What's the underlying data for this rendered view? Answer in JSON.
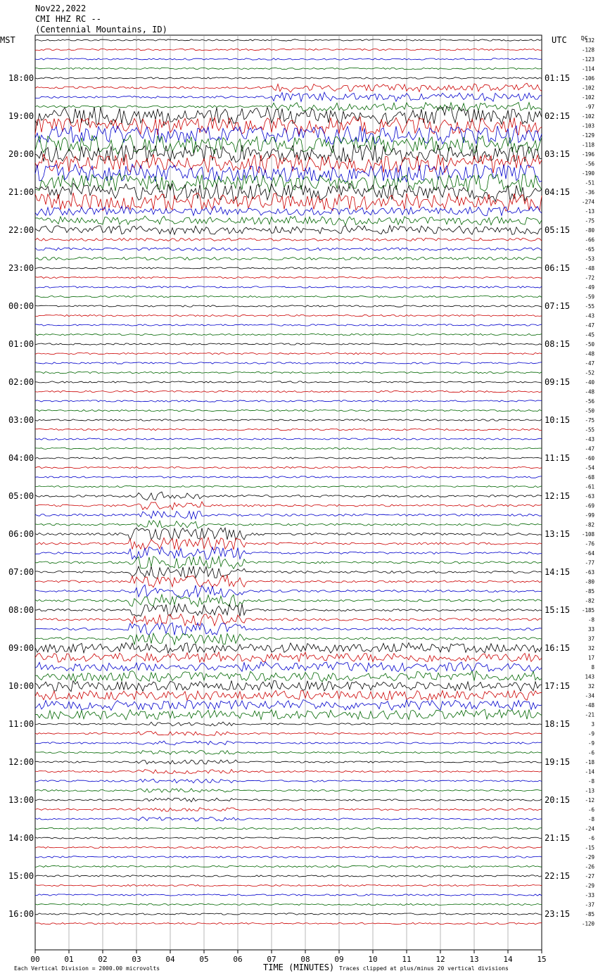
{
  "header": {
    "date": "Nov22,2022",
    "station": "CMI HHZ RC --",
    "location": "(Centennial Mountains, ID)"
  },
  "left_axis_label": "MST",
  "right_axis_label": "UTC",
  "dc_label": "DC",
  "xlabel": "TIME (MINUTES)",
  "footer_left": "Each Vertical Division = 2000.00 microvolts",
  "footer_right": "Traces clipped at plus/minus 20 vertical divisions",
  "chart_data": {
    "type": "line",
    "title": "CMI HHZ RC -- (Centennial Mountains, ID)",
    "xlabel": "TIME (MINUTES)",
    "xlim": [
      0,
      15
    ],
    "x_ticks": [
      "00",
      "01",
      "02",
      "03",
      "04",
      "05",
      "06",
      "07",
      "08",
      "09",
      "10",
      "11",
      "12",
      "13",
      "14",
      "15"
    ],
    "trace_colors": [
      "#000000",
      "#cc0000",
      "#0000cc",
      "#006600"
    ],
    "left_time_labels": [
      "18:00",
      "19:00",
      "20:00",
      "21:00",
      "22:00",
      "23:00",
      "00:00",
      "01:00",
      "02:00",
      "03:00",
      "04:00",
      "05:00",
      "06:00",
      "07:00",
      "08:00",
      "09:00",
      "10:00",
      "11:00",
      "12:00",
      "13:00",
      "14:00",
      "15:00",
      "16:00"
    ],
    "right_time_labels": [
      "01:15",
      "02:15",
      "03:15",
      "04:15",
      "05:15",
      "06:15",
      "07:15",
      "08:15",
      "09:15",
      "10:15",
      "11:15",
      "12:15",
      "13:15",
      "14:15",
      "15:15",
      "16:15",
      "17:15",
      "18:15",
      "19:15",
      "20:15",
      "21:15",
      "22:15",
      "23:15"
    ],
    "dc_offsets": [
      -132,
      -128,
      -123,
      -114,
      -106,
      -102,
      -102,
      -97,
      -102,
      -103,
      -129,
      -118,
      -196,
      -56,
      -190,
      -51,
      -36,
      -274,
      -13,
      -75,
      -80,
      -66,
      -65,
      -53,
      -48,
      -72,
      -49,
      -59,
      -55,
      -43,
      -47,
      -45,
      -50,
      -48,
      -47,
      -52,
      -40,
      -48,
      -56,
      -50,
      -75,
      -55,
      -43,
      -47,
      -60,
      -54,
      -68,
      -61,
      -63,
      -69,
      -99,
      -82,
      -108,
      -76,
      -64,
      -77,
      -63,
      -80,
      -85,
      -82,
      -185,
      -8,
      33,
      37,
      32,
      17,
      8,
      143,
      32,
      -34,
      -48,
      -21,
      3,
      -9,
      -9,
      -6,
      -18,
      -14,
      -8,
      -13,
      -12,
      -6,
      -8,
      -24,
      -6,
      -15,
      -29,
      -26,
      -27,
      -29,
      -33,
      -37,
      -85,
      -120
    ],
    "trace_count": 94,
    "minutes_per_trace": 15
  }
}
